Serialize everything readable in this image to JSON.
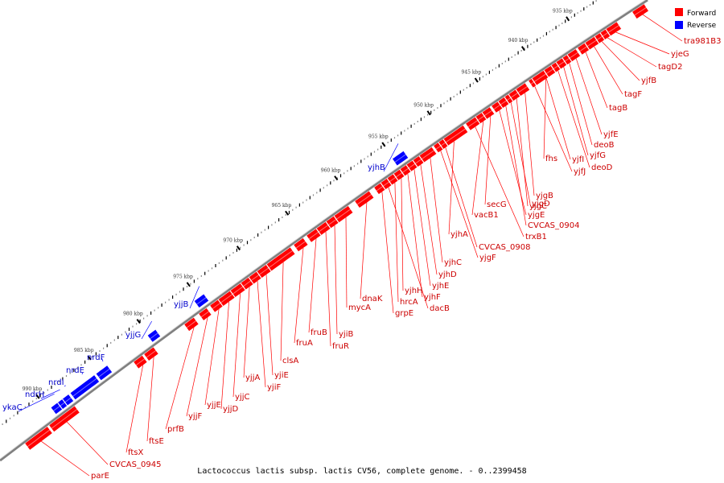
{
  "caption": "Lactococcus lactis subsp. lactis CV56, complete genome. - 0..2399458",
  "legend": [
    {
      "label": "Forward",
      "color": "#ff0000"
    },
    {
      "label": "Reverse",
      "color": "#0000ff"
    }
  ],
  "colors": {
    "forward": "#ff0000",
    "reverse": "#0000ff",
    "backbone": "#808080"
  },
  "ticks": [
    {
      "label": "935 kbp"
    },
    {
      "label": "940 kbp"
    },
    {
      "label": "945 kbp"
    },
    {
      "label": "950 kbp"
    },
    {
      "label": "955 kbp"
    },
    {
      "label": "960 kbp"
    },
    {
      "label": "965 kbp"
    },
    {
      "label": "970 kbp"
    },
    {
      "label": "975 kbp"
    },
    {
      "label": "980 kbp"
    },
    {
      "label": "985 kbp"
    },
    {
      "label": "990 kbp"
    }
  ],
  "forward_genes": [
    "tra981B3",
    "yjeG",
    "tagD2",
    "yjfB",
    "tagF",
    "tagB",
    "yjfE",
    "deoB",
    "yjfG",
    "deoD",
    "fhs",
    "yjfI",
    "yjfJ",
    "yjgB",
    "yjgC",
    "yjgD",
    "CVCAS_0904",
    "yjgE",
    "secG",
    "vacB1",
    "trxB1",
    "yjhA",
    "CVCAS_0908",
    "yjgF",
    "yjhC",
    "yjhD",
    "yjhE",
    "yjhF",
    "yjhH",
    "hrcA",
    "dacB",
    "grpE",
    "dnaK",
    "mycA",
    "yjiB",
    "fruR",
    "fruB",
    "fruA",
    "clsA",
    "yjiE",
    "yjiF",
    "yjjA",
    "yjjC",
    "yjjD",
    "yjjE",
    "yjjF",
    "prfB",
    "ftsE",
    "ftsX",
    "CVCAS_0945",
    "parE"
  ],
  "reverse_genes": [
    "yjhB",
    "yjjB",
    "yjjG",
    "nrdF",
    "nrdE",
    "nrdI",
    "ndrH",
    "ykaC"
  ]
}
